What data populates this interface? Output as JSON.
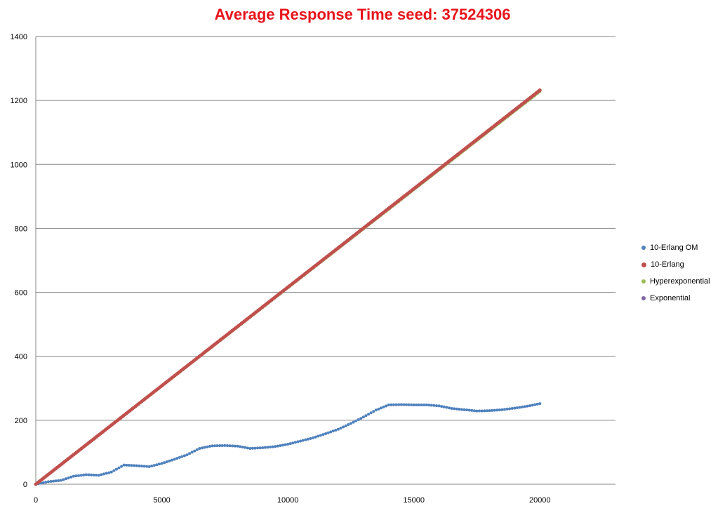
{
  "chart_data": {
    "type": "scatter",
    "title": "Average Response Time seed: 37524306",
    "xlabel": "",
    "ylabel": "",
    "xlim": [
      0,
      23000
    ],
    "ylim": [
      0,
      1400
    ],
    "xticks": [
      "0",
      "5000",
      "10000",
      "15000",
      "20000"
    ],
    "yticks": [
      "0",
      "200",
      "400",
      "600",
      "800",
      "1000",
      "1200",
      "1400"
    ],
    "grid": "horizontal",
    "legend_position": "right",
    "series": [
      {
        "name": "10-Erlang OM",
        "color": "#4f81bd",
        "marker_size": 3,
        "points": [
          [
            0,
            0
          ],
          [
            500,
            8
          ],
          [
            1000,
            12
          ],
          [
            1500,
            25
          ],
          [
            2000,
            30
          ],
          [
            2500,
            28
          ],
          [
            3000,
            38
          ],
          [
            3500,
            60
          ],
          [
            4000,
            58
          ],
          [
            4500,
            55
          ],
          [
            5000,
            65
          ],
          [
            5500,
            78
          ],
          [
            6000,
            92
          ],
          [
            6500,
            112
          ],
          [
            7000,
            120
          ],
          [
            7500,
            121
          ],
          [
            8000,
            119
          ],
          [
            8500,
            112
          ],
          [
            9000,
            114
          ],
          [
            9500,
            118
          ],
          [
            10000,
            125
          ],
          [
            10500,
            135
          ],
          [
            11000,
            145
          ],
          [
            11500,
            158
          ],
          [
            12000,
            172
          ],
          [
            12500,
            190
          ],
          [
            13000,
            210
          ],
          [
            13500,
            232
          ],
          [
            14000,
            248
          ],
          [
            14500,
            249
          ],
          [
            15000,
            248
          ],
          [
            15500,
            248
          ],
          [
            16000,
            245
          ],
          [
            16500,
            237
          ],
          [
            17000,
            233
          ],
          [
            17500,
            229
          ],
          [
            18000,
            230
          ],
          [
            18500,
            233
          ],
          [
            19000,
            238
          ],
          [
            19500,
            244
          ],
          [
            20000,
            252
          ]
        ]
      },
      {
        "name": "10-Erlang",
        "color": "#c0504d",
        "marker_size": 4,
        "points": [
          [
            0,
            0
          ],
          [
            20000,
            1232
          ]
        ]
      },
      {
        "name": "Hyperexponential",
        "color": "#9bbb59",
        "marker_size": 3,
        "points": [
          [
            0,
            0
          ],
          [
            20000,
            1228
          ]
        ]
      },
      {
        "name": "Exponential",
        "color": "#8064a2",
        "marker_size": 3,
        "points": [
          [
            0,
            0
          ],
          [
            20000,
            1231
          ]
        ]
      }
    ]
  }
}
